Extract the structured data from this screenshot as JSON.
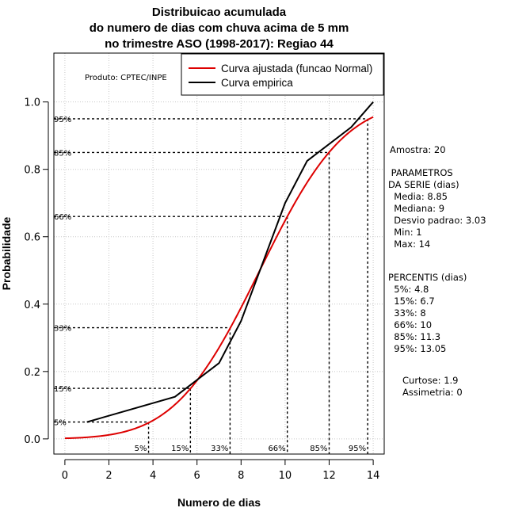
{
  "chart_data": {
    "type": "line",
    "title": [
      "Distribuicao acumulada",
      "do numero de dias com chuva acima de 5 mm",
      "no trimestre ASO (1998-2017): Regiao 44"
    ],
    "xlabel": "Numero de dias",
    "ylabel": "Probabilidade",
    "xlim": [
      -0.5,
      14.5
    ],
    "ylim": [
      -0.045,
      1.145
    ],
    "x_ticks": [
      0,
      2,
      4,
      6,
      8,
      10,
      12,
      14
    ],
    "y_ticks": [
      0.0,
      0.2,
      0.4,
      0.6,
      0.8,
      1.0
    ],
    "y_tick_labels": [
      "0.0",
      "0.2",
      "0.4",
      "0.6",
      "0.8",
      "1.0"
    ],
    "credit": "Produto: CPTEC/INPE",
    "legend": [
      {
        "label": "Curva ajustada (funcao Normal)",
        "color": "#dd0000"
      },
      {
        "label": "Curva empirica",
        "color": "#000000"
      }
    ],
    "series": [
      {
        "name": "Curva ajustada (funcao Normal)",
        "color": "#dd0000",
        "mean": 8.85,
        "sd": 3.03,
        "x_range": [
          0,
          14
        ]
      },
      {
        "name": "Curva empirica",
        "color": "#000000",
        "x": [
          1,
          5,
          7,
          8,
          10,
          11,
          13,
          14
        ],
        "y": [
          0.05,
          0.125,
          0.225,
          0.35,
          0.7,
          0.825,
          0.925,
          1.0
        ]
      }
    ],
    "percentile_lines": [
      {
        "label": "5%",
        "x": 3.8,
        "y": 0.05
      },
      {
        "label": "15%",
        "x": 5.7,
        "y": 0.15
      },
      {
        "label": "33%",
        "x": 7.5,
        "y": 0.33
      },
      {
        "label": "66%",
        "x": 10.1,
        "y": 0.66
      },
      {
        "label": "85%",
        "x": 12.0,
        "y": 0.85
      },
      {
        "label": "95%",
        "x": 13.75,
        "y": 0.95
      }
    ]
  },
  "stats": {
    "amostra": "Amostra: 20",
    "parametros_title": " PARAMETROS\nDA SERIE (dias)",
    "media": "  Media: 8.85",
    "mediana": "  Mediana: 9",
    "desvio": "  Desvio padrao: 3.03",
    "min": "  Min: 1",
    "max": "  Max: 14",
    "percentis_title": "PERCENTIS (dias)",
    "p5": "  5%: 4.8",
    "p15": "  15%: 6.7",
    "p33": "  33%: 8",
    "p66": "  66%: 10",
    "p85": "  85%: 11.3",
    "p95": "  95%: 13.05",
    "curtose": "Curtose: 1.9",
    "assimetria": "Assimetria: 0"
  }
}
